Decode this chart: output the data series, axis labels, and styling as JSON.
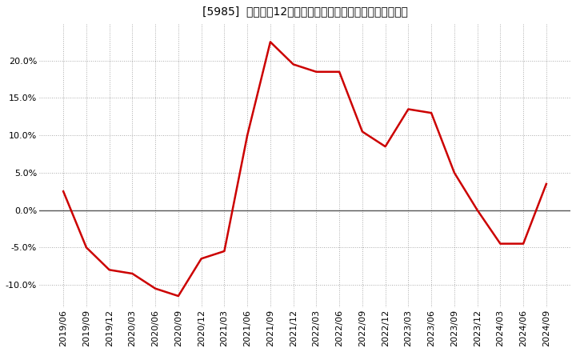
{
  "title": "[5985]  売上高の12か月移動合計の対前年同期増減率の推移",
  "x_labels": [
    "2019/06",
    "2019/09",
    "2019/12",
    "2020/03",
    "2020/06",
    "2020/09",
    "2020/12",
    "2021/03",
    "2021/06",
    "2021/09",
    "2021/12",
    "2022/03",
    "2022/06",
    "2022/09",
    "2022/12",
    "2023/03",
    "2023/06",
    "2023/09",
    "2023/12",
    "2024/03",
    "2024/06",
    "2024/09"
  ],
  "y_values": [
    2.5,
    -5.0,
    -8.0,
    -8.5,
    -10.5,
    -11.5,
    -6.5,
    -5.5,
    10.0,
    22.5,
    19.5,
    18.5,
    18.5,
    10.5,
    8.5,
    13.5,
    13.0,
    5.0,
    0.0,
    -4.5,
    -4.5,
    3.5
  ],
  "line_color": "#cc0000",
  "line_width": 1.8,
  "bg_color": "#ffffff",
  "plot_bg_color": "#ffffff",
  "grid_color": "#aaaaaa",
  "zero_line_color": "#555555",
  "ylim": [
    -13,
    25
  ],
  "yticks": [
    -10.0,
    -5.0,
    0.0,
    5.0,
    10.0,
    15.0,
    20.0
  ],
  "title_fontsize": 11,
  "tick_fontsize": 8
}
